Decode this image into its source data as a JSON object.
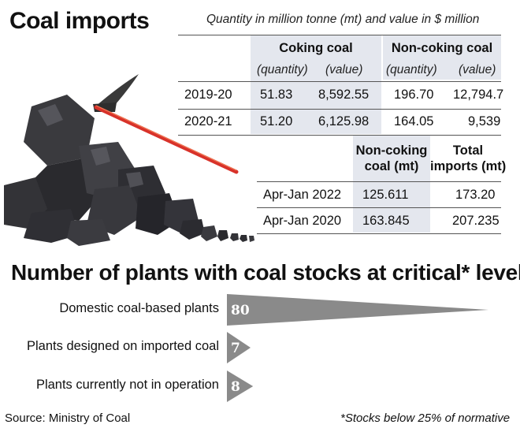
{
  "title": "Coal imports",
  "subtitle": "Quantity in million tonne (mt) and value in $ million",
  "table1": {
    "group_headers": [
      "Coking coal",
      "Non-coking coal"
    ],
    "sub_headers": [
      "(quantity)",
      "(value)",
      "(quantity)",
      "(value)"
    ],
    "rows": [
      {
        "year": "2019-20",
        "cells": [
          "51.83",
          "8,592.55",
          "196.70",
          "12,794.7"
        ]
      },
      {
        "year": "2020-21",
        "cells": [
          "51.20",
          "6,125.98",
          "164.05",
          "9,539"
        ]
      }
    ]
  },
  "table2": {
    "headers": [
      [
        "Non-coking",
        "coal (mt)"
      ],
      [
        "Total",
        "imports (mt)"
      ]
    ],
    "rows": [
      {
        "period": "Apr-Jan 2022",
        "cells": [
          "125.611",
          "173.20"
        ]
      },
      {
        "period": "Apr-Jan 2020",
        "cells": [
          "163.845",
          "207.235"
        ]
      }
    ]
  },
  "section_title": "Number of plants with coal stocks at critical* level",
  "chart_data": {
    "type": "bar",
    "title": "Number of plants with coal stocks at critical* level",
    "categories": [
      "Domestic coal-based plants",
      "Plants designed on imported coal",
      "Plants currently not in operation"
    ],
    "values": [
      80,
      7,
      8
    ],
    "value_labels": [
      "80",
      "7",
      "8"
    ],
    "bar_color": "#8a8a8a"
  },
  "footer": {
    "source": "Source: Ministry of Coal",
    "note": "*Stocks below 25% of normative"
  },
  "colors": {
    "shade": "#e4e7ee",
    "coal": "#2b2b2e",
    "pickaxe_handle": "#d8322a",
    "bar": "#8a8a8a"
  }
}
